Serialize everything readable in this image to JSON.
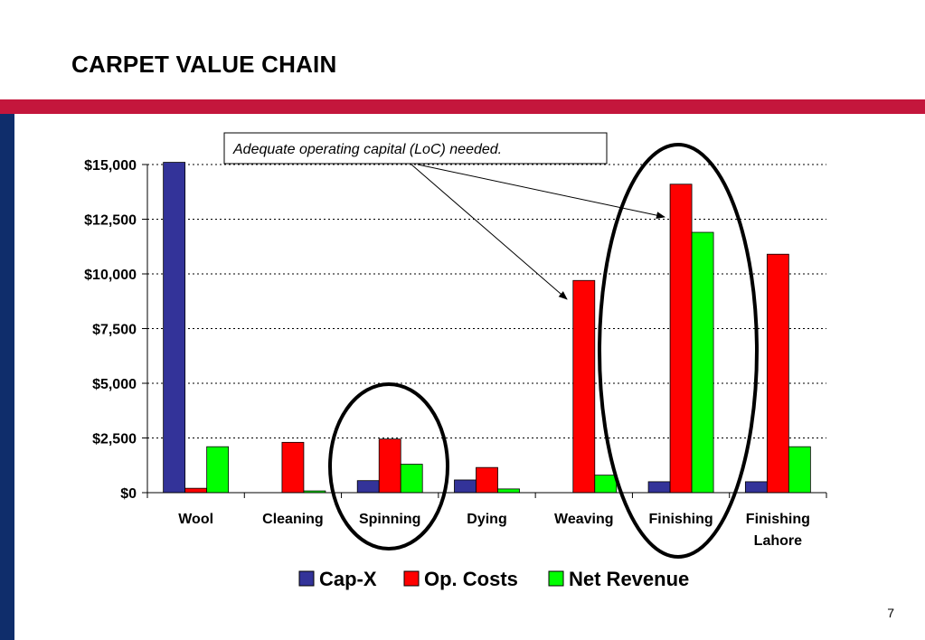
{
  "slide": {
    "title": "CARPET VALUE CHAIN",
    "page_number": "7",
    "accent_color": "#c4163c",
    "side_color": "#0f2d6b"
  },
  "annotation": {
    "text": "Adequate operating capital (LoC) needed."
  },
  "chart_data": {
    "type": "bar",
    "categories": [
      "Wool",
      "Cleaning",
      "Spinning",
      "Dying",
      "Weaving",
      "Finishing",
      "Finishing Lahore"
    ],
    "series": [
      {
        "name": "Cap-X",
        "color": "#333399",
        "values": [
          15100,
          0,
          550,
          580,
          0,
          500,
          500
        ]
      },
      {
        "name": "Op. Costs",
        "color": "#ff0000",
        "values": [
          200,
          2300,
          2450,
          1150,
          9700,
          14100,
          10900
        ]
      },
      {
        "name": "Net Revenue",
        "color": "#00ff00",
        "values": [
          2100,
          80,
          1300,
          170,
          800,
          11900,
          2100
        ]
      }
    ],
    "y_ticks": [
      "$0",
      "$2,500",
      "$5,000",
      "$7,500",
      "$10,000",
      "$12,500",
      "$15,000"
    ],
    "ylim": [
      0,
      15000
    ],
    "grid": true,
    "legend_position": "bottom",
    "highlighted_categories": [
      "Spinning",
      "Finishing"
    ]
  }
}
